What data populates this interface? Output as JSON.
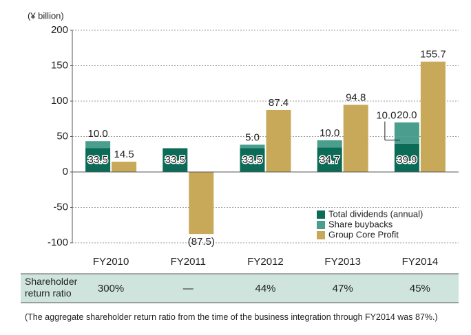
{
  "chart_data": {
    "type": "bar",
    "y_axis_label": "(¥ billion)",
    "categories": [
      "FY2010",
      "FY2011",
      "FY2012",
      "FY2013",
      "FY2014"
    ],
    "series": [
      {
        "name": "Total dividends (annual)",
        "color": "#0b6b57",
        "stack": "a",
        "values": [
          33.5,
          33.5,
          33.5,
          34.7,
          39.9
        ]
      },
      {
        "name": "Share buybacks",
        "color": "#4a9e8d",
        "stack": "a",
        "values": [
          10.0,
          null,
          5.0,
          10.0,
          20.0
        ],
        "value_labels": [
          "10.0",
          null,
          "5.0",
          "10.0",
          "20.0"
        ]
      },
      {
        "name": "Group Core Profit",
        "color": "#c8a959",
        "stack": "b",
        "values": [
          14.5,
          -87.5,
          87.4,
          94.8,
          155.7
        ],
        "value_labels": [
          "14.5",
          "(87.5)",
          "87.4",
          "94.8",
          "155.7"
        ]
      }
    ],
    "annotations": [
      {
        "text": "10.0",
        "value": 10.0,
        "category": "FY2014",
        "series": "Share buybacks"
      }
    ],
    "ylim": [
      -100,
      200
    ],
    "yticks": [
      -100,
      -50,
      0,
      50,
      100,
      150,
      200
    ],
    "grid": true,
    "legend": "bottom-right"
  },
  "table": {
    "header": "Shareholder return ratio",
    "values": [
      "300%",
      "—",
      "44%",
      "47%",
      "45%"
    ]
  },
  "footnote": "(The aggregate shareholder return ratio from the time of the business integration through FY2014 was 87%.)"
}
